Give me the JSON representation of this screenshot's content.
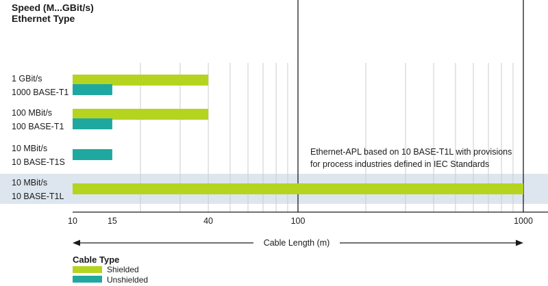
{
  "header": {
    "line1": "Speed (M...GBit/s)",
    "line2": "Ethernet Type"
  },
  "axis": {
    "xlabel": "Cable Length (m)"
  },
  "annotation": {
    "line1": "Ethernet-APL based on 10 BASE-T1L with provisions",
    "line2": "for process industries defined in IEC Standards"
  },
  "legend": {
    "title": "Cable Type"
  },
  "colors": {
    "shielded": "#b5d41f",
    "unshielded": "#1fa8a0",
    "highlight_band": "#dde6ee",
    "grid_minor": "#cccccc",
    "grid_major": "#1a1a1a"
  },
  "chart_data": {
    "type": "bar",
    "orientation": "horizontal",
    "x_scale": "log",
    "xlim": [
      10,
      1000
    ],
    "xlabel": "Cable Length (m)",
    "xticks": [
      10,
      15,
      40,
      100,
      1000
    ],
    "categories": [
      [
        "1 GBit/s",
        "1000 BASE-T1"
      ],
      [
        "100 MBit/s",
        "100 BASE-T1"
      ],
      [
        "10 MBit/s",
        "10 BASE-T1S"
      ],
      [
        "10 MBit/s",
        "10 BASE-T1L"
      ]
    ],
    "highlighted_category": 3,
    "series": [
      {
        "name": "Shielded",
        "values": [
          40,
          40,
          null,
          1000
        ]
      },
      {
        "name": "Unshielded",
        "values": [
          15,
          15,
          15,
          null
        ]
      }
    ],
    "legend_position": "bottom-left",
    "grid": true
  }
}
